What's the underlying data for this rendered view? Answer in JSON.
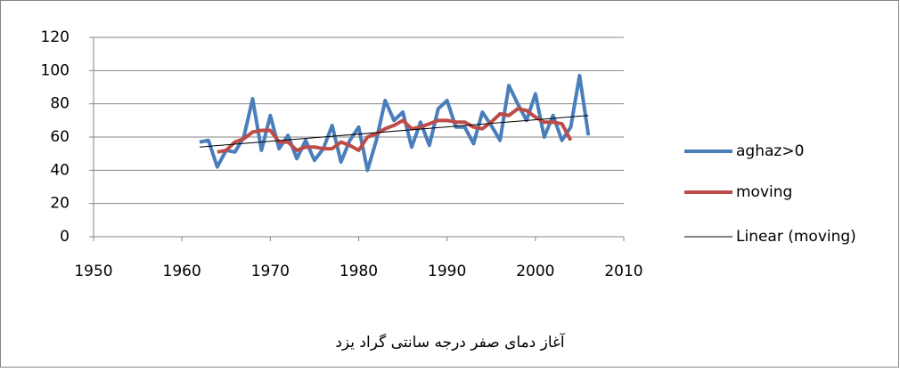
{
  "chart_data": {
    "type": "line",
    "title": "آغاز دمای صفر درجه سانتی گراد یزد",
    "xlim": [
      1950,
      2010
    ],
    "xticks": [
      1950,
      1960,
      1970,
      1980,
      1990,
      2000,
      2010
    ],
    "ylim": [
      0,
      120
    ],
    "yticks": [
      0,
      20,
      40,
      60,
      80,
      100,
      120
    ],
    "grid": true,
    "legend": "right",
    "series": [
      {
        "name": "aghaz>0",
        "color": "#4a7ebb",
        "width": 4,
        "x": [
          1962,
          1963,
          1964,
          1965,
          1966,
          1967,
          1968,
          1969,
          1970,
          1971,
          1972,
          1973,
          1974,
          1975,
          1976,
          1977,
          1978,
          1979,
          1980,
          1981,
          1982,
          1983,
          1984,
          1985,
          1986,
          1987,
          1988,
          1989,
          1990,
          1991,
          1992,
          1993,
          1994,
          1995,
          1996,
          1997,
          1998,
          1999,
          2000,
          2001,
          2002,
          2003,
          2004,
          2005,
          2006
        ],
        "values": [
          57,
          58,
          42,
          52,
          51,
          60,
          83,
          52,
          73,
          53,
          61,
          47,
          58,
          46,
          53,
          67,
          45,
          58,
          66,
          40,
          58,
          82,
          70,
          75,
          54,
          69,
          55,
          77,
          82,
          66,
          66,
          56,
          75,
          67,
          58,
          91,
          80,
          70,
          86,
          60,
          73,
          58,
          66,
          97,
          61
        ]
      },
      {
        "name": "moving",
        "color": "#be4b48",
        "width": 4,
        "x": [
          1964,
          1965,
          1966,
          1967,
          1968,
          1969,
          1970,
          1971,
          1972,
          1973,
          1974,
          1975,
          1976,
          1977,
          1978,
          1979,
          1980,
          1981,
          1982,
          1983,
          1984,
          1985,
          1986,
          1987,
          1988,
          1989,
          1990,
          1991,
          1992,
          1993,
          1994,
          1995,
          1996,
          1997,
          1998,
          1999,
          2000,
          2001,
          2002,
          2003,
          2004
        ],
        "values": [
          51,
          52,
          57,
          59,
          63,
          64,
          64,
          57,
          57,
          52,
          54,
          54,
          53,
          53,
          57,
          55,
          52,
          60,
          62,
          65,
          67,
          70,
          65,
          66,
          68,
          70,
          70,
          69,
          69,
          66,
          65,
          69,
          74,
          73,
          77,
          76,
          72,
          69,
          69,
          68,
          58
        ]
      },
      {
        "name": "Linear (moving)",
        "color": "#000000",
        "width": 1,
        "x": [
          1962,
          2006
        ],
        "values": [
          54,
          73
        ]
      }
    ]
  }
}
